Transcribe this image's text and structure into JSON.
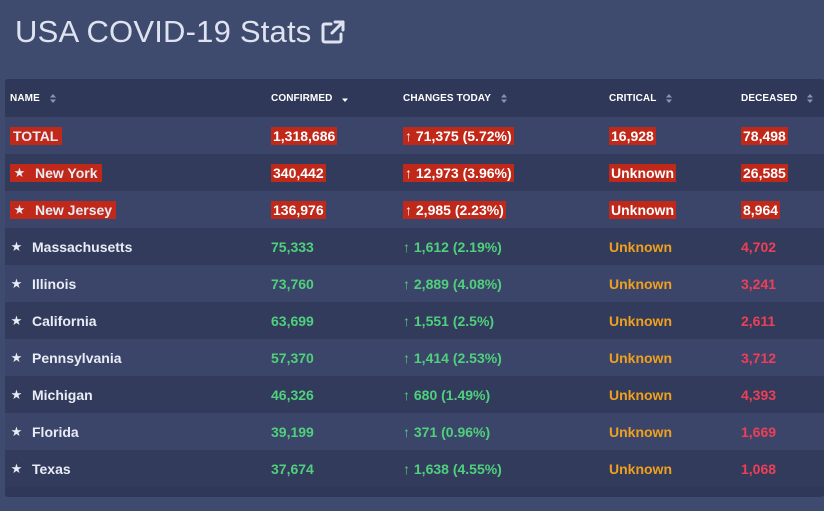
{
  "header": {
    "title": "USA COVID-19 Stats",
    "link_icon": "external-link-icon"
  },
  "table": {
    "columns": [
      {
        "key": "name",
        "label": "NAME",
        "sort": "none"
      },
      {
        "key": "confirmed",
        "label": "CONFIRMED",
        "sort": "desc"
      },
      {
        "key": "changes",
        "label": "CHANGES TODAY",
        "sort": "none"
      },
      {
        "key": "critical",
        "label": "CRITICAL",
        "sort": "none"
      },
      {
        "key": "deceased",
        "label": "DECEASED",
        "sort": "none"
      }
    ],
    "rows": [
      {
        "star": false,
        "name": "TOTAL",
        "confirmed": "1,318,686",
        "changes": "↑ 71,375 (5.72%)",
        "critical": "16,928",
        "deceased": "78,498",
        "highlight": true
      },
      {
        "star": true,
        "name": "New York",
        "confirmed": "340,442",
        "changes": "↑ 12,973 (3.96%)",
        "critical": "Unknown",
        "deceased": "26,585",
        "highlight": true
      },
      {
        "star": true,
        "name": "New Jersey",
        "confirmed": "136,976",
        "changes": "↑ 2,985 (2.23%)",
        "critical": "Unknown",
        "deceased": "8,964",
        "highlight": true
      },
      {
        "star": true,
        "name": "Massachusetts",
        "confirmed": "75,333",
        "changes": "↑ 1,612 (2.19%)",
        "critical": "Unknown",
        "deceased": "4,702",
        "highlight": false
      },
      {
        "star": true,
        "name": "Illinois",
        "confirmed": "73,760",
        "changes": "↑ 2,889 (4.08%)",
        "critical": "Unknown",
        "deceased": "3,241",
        "highlight": false
      },
      {
        "star": true,
        "name": "California",
        "confirmed": "63,699",
        "changes": "↑ 1,551 (2.5%)",
        "critical": "Unknown",
        "deceased": "2,611",
        "highlight": false
      },
      {
        "star": true,
        "name": "Pennsylvania",
        "confirmed": "57,370",
        "changes": "↑ 1,414 (2.53%)",
        "critical": "Unknown",
        "deceased": "3,712",
        "highlight": false
      },
      {
        "star": true,
        "name": "Michigan",
        "confirmed": "46,326",
        "changes": "↑ 680 (1.49%)",
        "critical": "Unknown",
        "deceased": "4,393",
        "highlight": false
      },
      {
        "star": true,
        "name": "Florida",
        "confirmed": "39,199",
        "changes": "↑ 371 (0.96%)",
        "critical": "Unknown",
        "deceased": "1,669",
        "highlight": false
      },
      {
        "star": true,
        "name": "Texas",
        "confirmed": "37,674",
        "changes": "↑ 1,638 (4.55%)",
        "critical": "Unknown",
        "deceased": "1,068",
        "highlight": false
      }
    ]
  },
  "colors": {
    "background": "#3e4a6e",
    "table_bg": "#2f3858",
    "highlight": "#c0281a",
    "confirmed": "#4fd07c",
    "critical": "#f0a01e",
    "deceased": "#ef3f56"
  }
}
